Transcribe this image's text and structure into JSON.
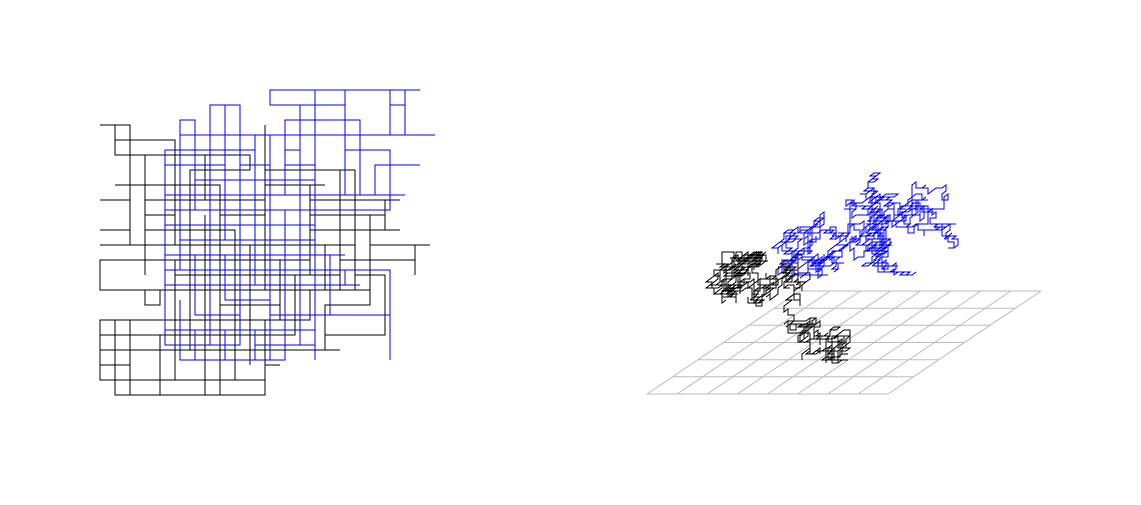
{
  "colors": {
    "background": "#ffffff",
    "walk_primary": "#000000",
    "walk_secondary": "#0000ff",
    "grid": "#bbbbbb"
  },
  "panels": [
    {
      "name": "2d-random-walk-panel",
      "type": "lattice-walk-2d",
      "series": [
        "walk_primary",
        "walk_secondary"
      ]
    },
    {
      "name": "3d-random-walk-panel",
      "type": "lattice-walk-3d",
      "series": [
        "walk_primary",
        "walk_secondary"
      ],
      "floor_grid": {
        "cells_x": 8,
        "cells_y": 6
      }
    }
  ]
}
